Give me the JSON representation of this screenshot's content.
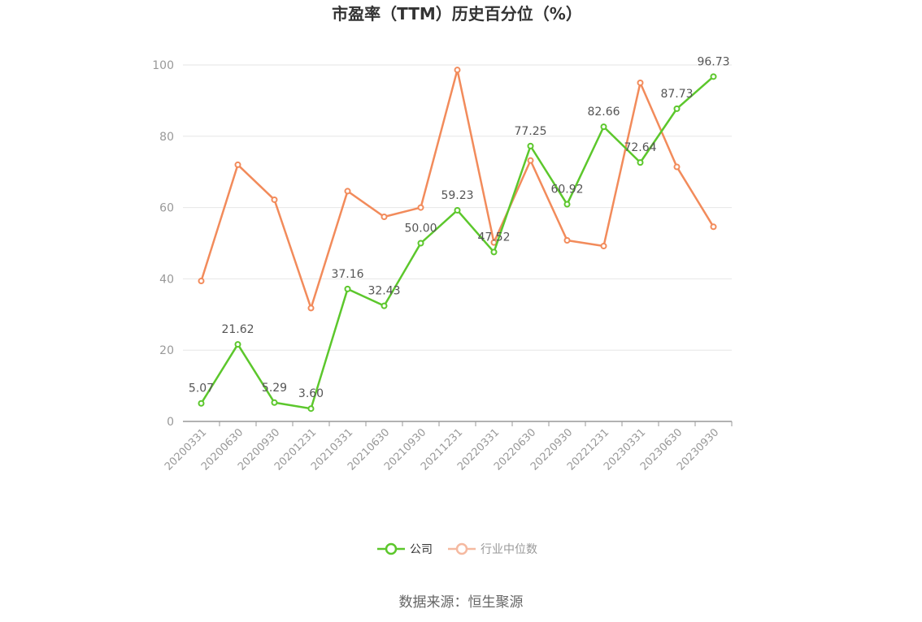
{
  "title": "市盈率（TTM）历史百分位（%）",
  "source": "数据来源：恒生聚源",
  "colors": {
    "company": "#5cc72c",
    "industry": "#f28b5b",
    "legend_inactive": "#f5b9a0",
    "axis": "#999999",
    "grid": "#e6e6e6"
  },
  "chart_data": {
    "type": "line",
    "title": "市盈率（TTM）历史百分位（%）",
    "categories": [
      "20200331",
      "20200630",
      "20200930",
      "20201231",
      "20210331",
      "20210630",
      "20210930",
      "20211231",
      "20220331",
      "20220630",
      "20220930",
      "20221231",
      "20230331",
      "20230630",
      "20230930"
    ],
    "ylim": [
      0,
      100
    ],
    "yticks": [
      0,
      20,
      40,
      60,
      80,
      100
    ],
    "grid": true,
    "legend_position": "bottom",
    "series": [
      {
        "name": "公司",
        "values": [
          5.07,
          21.62,
          5.29,
          3.6,
          37.16,
          32.43,
          50.0,
          59.23,
          47.52,
          77.25,
          60.92,
          82.66,
          72.64,
          87.73,
          96.73
        ],
        "show_labels": true
      },
      {
        "name": "行业中位数",
        "values": [
          39.4,
          72.0,
          62.2,
          31.8,
          64.6,
          57.4,
          60.0,
          98.6,
          50.2,
          73.2,
          50.8,
          49.2,
          95.0,
          71.4,
          54.6
        ],
        "show_labels": false
      }
    ]
  }
}
